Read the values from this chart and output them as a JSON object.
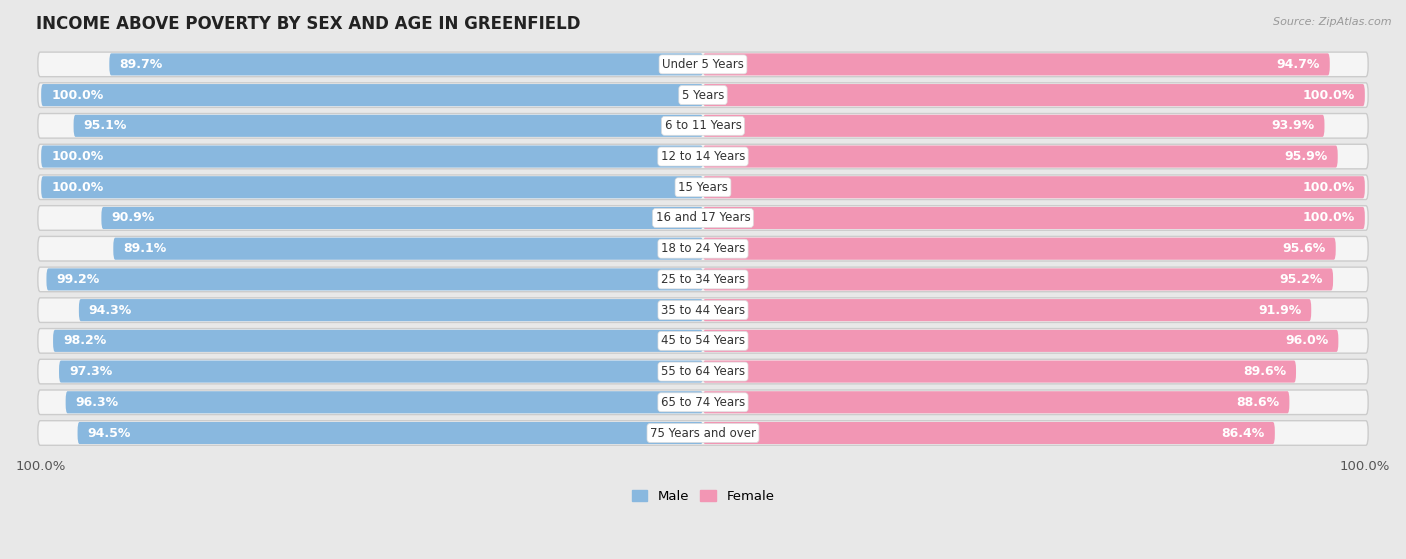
{
  "title": "INCOME ABOVE POVERTY BY SEX AND AGE IN GREENFIELD",
  "source": "Source: ZipAtlas.com",
  "categories": [
    "Under 5 Years",
    "5 Years",
    "6 to 11 Years",
    "12 to 14 Years",
    "15 Years",
    "16 and 17 Years",
    "18 to 24 Years",
    "25 to 34 Years",
    "35 to 44 Years",
    "45 to 54 Years",
    "55 to 64 Years",
    "65 to 74 Years",
    "75 Years and over"
  ],
  "male": [
    89.7,
    100.0,
    95.1,
    100.0,
    100.0,
    90.9,
    89.1,
    99.2,
    94.3,
    98.2,
    97.3,
    96.3,
    94.5
  ],
  "female": [
    94.7,
    100.0,
    93.9,
    95.9,
    100.0,
    100.0,
    95.6,
    95.2,
    91.9,
    96.0,
    89.6,
    88.6,
    86.4
  ],
  "male_color": "#89b8df",
  "female_color": "#f296b4",
  "bg_color": "#e8e8e8",
  "row_bg_color": "#f5f5f5",
  "bar_height": 0.72,
  "title_fontsize": 12,
  "label_fontsize": 9,
  "category_fontsize": 8.5,
  "source_fontsize": 8,
  "legend_male": "Male",
  "legend_female": "Female",
  "x_max": 100
}
